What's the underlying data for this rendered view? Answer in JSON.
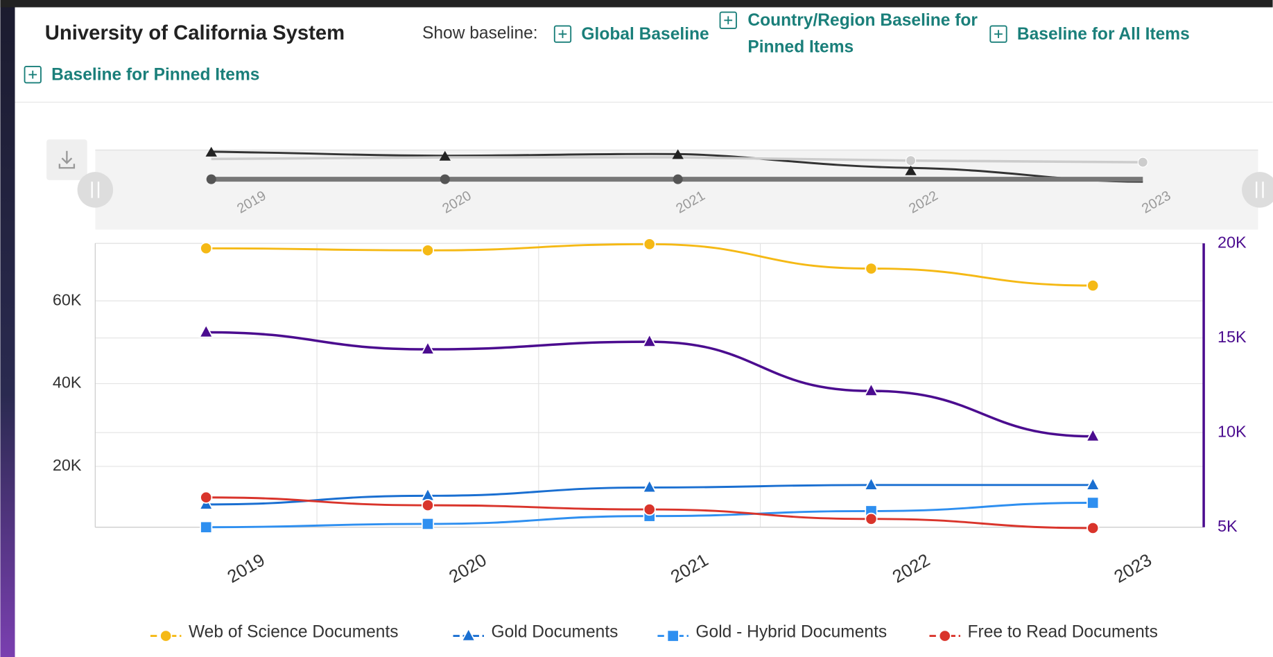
{
  "header": {
    "title": "University of California System",
    "baseline_label": "Show baseline:",
    "options": [
      [
        "Global Baseline"
      ],
      [
        "Country/Region Baseline for",
        "Pinned Items"
      ],
      [
        "Baseline for All Items"
      ],
      [
        "Baseline for Pinned Items"
      ]
    ]
  },
  "chart_data": {
    "type": "line",
    "categories": [
      "2019",
      "2020",
      "2021",
      "2022",
      "2023"
    ],
    "ylim": [
      5300,
      73900
    ],
    "yticks": [
      {
        "value": 20000,
        "label": "20K"
      },
      {
        "value": 40000,
        "label": "40K"
      },
      {
        "value": 60000,
        "label": "60K"
      }
    ],
    "y2lim": [
      5000,
      20000
    ],
    "y2ticks": [
      {
        "value": 5000,
        "label": "5K"
      },
      {
        "value": 10000,
        "label": "10K"
      },
      {
        "value": 15000,
        "label": "15K"
      },
      {
        "value": 20000,
        "label": "20K"
      }
    ],
    "grid": true,
    "legend": "bottom",
    "series": [
      {
        "name": "Web of Science Documents",
        "color": "#f5b915",
        "marker": "circle",
        "values": [
          72700,
          72200,
          73700,
          67800,
          63700
        ]
      },
      {
        "color": "#4b0c8f",
        "marker": "triangle",
        "axis": "y2",
        "values": [
          15300,
          14400,
          14800,
          12200,
          9800
        ]
      },
      {
        "name": "Gold Documents",
        "color": "#1a6fd1",
        "marker": "triangle",
        "values": [
          10800,
          12900,
          14900,
          15500,
          15500
        ]
      },
      {
        "name": "Gold - Hybrid Documents",
        "color": "#2e8ff0",
        "marker": "square",
        "values": [
          5300,
          6100,
          8000,
          9200,
          11200
        ]
      },
      {
        "name": "Free to Read Documents",
        "color": "#d9342b",
        "marker": "circle",
        "values": [
          12500,
          10600,
          9600,
          7300,
          5100
        ]
      }
    ]
  }
}
